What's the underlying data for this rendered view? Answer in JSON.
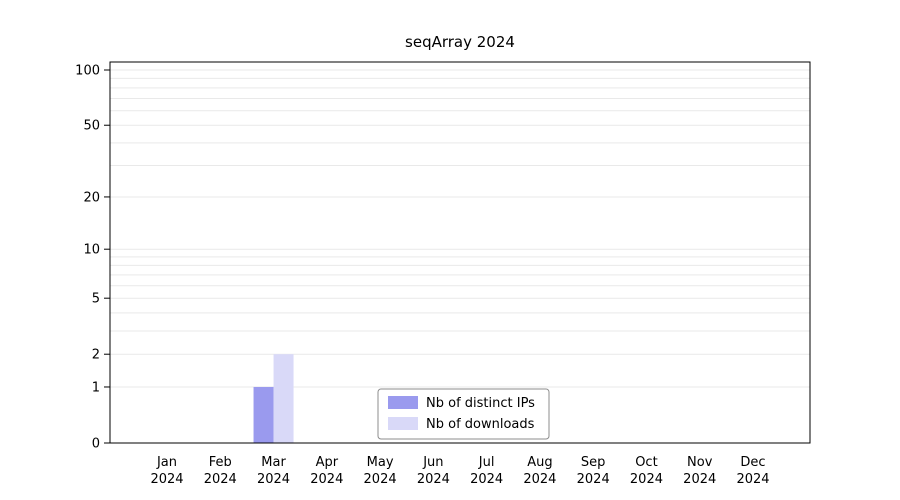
{
  "chart_data": {
    "type": "bar",
    "title": "seqArray 2024",
    "months": [
      "Jan",
      "Feb",
      "Mar",
      "Apr",
      "May",
      "Jun",
      "Jul",
      "Aug",
      "Sep",
      "Oct",
      "Nov",
      "Dec"
    ],
    "year": "2024",
    "series": [
      {
        "name": "Nb of distinct IPs",
        "color": "#9a9aee",
        "values": [
          0,
          0,
          1,
          0,
          0,
          0,
          0,
          0,
          0,
          0,
          0,
          0
        ]
      },
      {
        "name": "Nb of downloads",
        "color": "#d9d9f8",
        "values": [
          0,
          0,
          2,
          0,
          0,
          0,
          0,
          0,
          0,
          0,
          0,
          0
        ]
      }
    ],
    "y_ticks": [
      0,
      1,
      2,
      5,
      10,
      20,
      50,
      100
    ],
    "y_scale": "log1p",
    "y_max": 100,
    "grid": true,
    "grid_color": "#e9e9e9",
    "legend_position": "bottom-center"
  }
}
